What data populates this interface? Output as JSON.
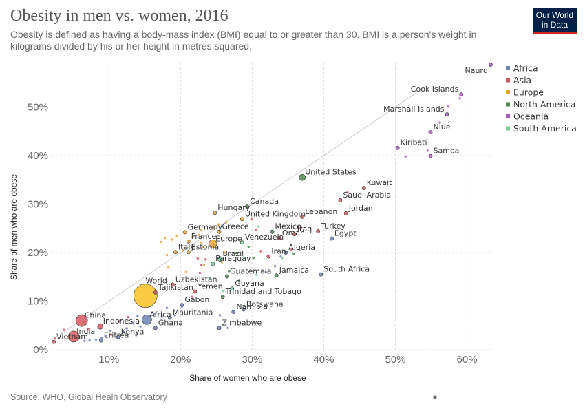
{
  "header": {
    "title": "Obesity in men vs. women, 2016",
    "subtitle": "Obesity is defined as having a body-mass index (BMI) equal to or greater than 30. BMI is a person's weight in kilograms divided by his or her height in metres squared.",
    "logo_line1": "Our World",
    "logo_line2": "in Data"
  },
  "footer": {
    "source": "Source: WHO, Global Healh Observatory"
  },
  "colors": {
    "Africa": "#6d83b5",
    "Asia": "#d25a5f",
    "Europe": "#e8a33a",
    "North America": "#4f8a50",
    "Oceania": "#ad5ac1",
    "South America": "#7cd199",
    "World": "#fbc72f",
    "diagonal": "#cccccc",
    "grid": "#dddddd"
  },
  "chart_data": {
    "type": "scatter",
    "title": "Obesity in men vs. women, 2016",
    "xlabel": "Share of women who are obese",
    "ylabel": "Share of men who are obese",
    "xlim": [
      2,
      63.5
    ],
    "ylim": [
      0,
      59
    ],
    "x_ticks": [
      10,
      20,
      30,
      40,
      50,
      60
    ],
    "y_ticks": [
      0,
      10,
      20,
      30,
      40,
      50
    ],
    "tick_suffix": "%",
    "grid": true,
    "reference_line": "y = x",
    "legend": [
      "Africa",
      "Asia",
      "Europe",
      "North America",
      "Oceania",
      "South America"
    ],
    "legend_position": "right",
    "points": [
      {
        "name": "Nauru",
        "region": "Oceania",
        "x": 63.3,
        "y": 58.7,
        "label": true
      },
      {
        "name": "Cook Islands",
        "region": "Oceania",
        "x": 59.2,
        "y": 52.6,
        "label": true
      },
      {
        "name": "Marshall Islands",
        "region": "Oceania",
        "x": 57.2,
        "y": 48.5,
        "label": true
      },
      {
        "name": "Niue",
        "region": "Oceania",
        "x": 54.9,
        "y": 44.8,
        "label": true
      },
      {
        "name": "Kiribati",
        "region": "Oceania",
        "x": 50.3,
        "y": 41.6,
        "label": true
      },
      {
        "name": "Samoa",
        "region": "Oceania",
        "x": 54.9,
        "y": 39.9,
        "label": true
      },
      {
        "name": "United States",
        "region": "North America",
        "x": 37.0,
        "y": 35.5,
        "label": true
      },
      {
        "name": "Kuwait",
        "region": "Asia",
        "x": 45.6,
        "y": 33.3,
        "label": true
      },
      {
        "name": "Saudi Arabia",
        "region": "Asia",
        "x": 42.3,
        "y": 30.8,
        "label": true
      },
      {
        "name": "Jordan",
        "region": "Asia",
        "x": 43.1,
        "y": 28.1,
        "label": true
      },
      {
        "name": "Canada",
        "region": "North America",
        "x": 29.3,
        "y": 29.5,
        "label": true
      },
      {
        "name": "Hungary",
        "region": "Europe",
        "x": 24.8,
        "y": 28.2,
        "label": true
      },
      {
        "name": "United Kingdom",
        "region": "Europe",
        "x": 28.6,
        "y": 26.9,
        "label": true
      },
      {
        "name": "Lebanon",
        "region": "Asia",
        "x": 37.0,
        "y": 27.4,
        "label": true
      },
      {
        "name": "Turkey",
        "region": "Asia",
        "x": 39.2,
        "y": 24.4,
        "label": true
      },
      {
        "name": "Mexico",
        "region": "North America",
        "x": 32.8,
        "y": 24.3,
        "label": true
      },
      {
        "name": "Iraq",
        "region": "Asia",
        "x": 35.9,
        "y": 23.8,
        "label": true
      },
      {
        "name": "Egypt",
        "region": "Africa",
        "x": 41.1,
        "y": 22.9,
        "label": true
      },
      {
        "name": "Oman",
        "region": "Asia",
        "x": 33.8,
        "y": 23.0,
        "label": true
      },
      {
        "name": "Germany",
        "region": "Europe",
        "x": 20.6,
        "y": 24.2,
        "label": true
      },
      {
        "name": "Greece",
        "region": "Europe",
        "x": 25.4,
        "y": 24.3,
        "label": true
      },
      {
        "name": "France",
        "region": "Europe",
        "x": 21.1,
        "y": 22.3,
        "label": true
      },
      {
        "name": "Europe",
        "region": "Europe",
        "x": 24.5,
        "y": 21.8,
        "label": true
      },
      {
        "name": "Venezuela",
        "region": "South America",
        "x": 28.6,
        "y": 22.1,
        "label": true
      },
      {
        "name": "Italy",
        "region": "Europe",
        "x": 19.3,
        "y": 20.1,
        "label": true
      },
      {
        "name": "Estonia",
        "region": "Europe",
        "x": 21.1,
        "y": 20.1,
        "label": true
      },
      {
        "name": "Algeria",
        "region": "Africa",
        "x": 34.7,
        "y": 20.0,
        "label": true
      },
      {
        "name": "Iran",
        "region": "Asia",
        "x": 32.3,
        "y": 19.2,
        "label": true
      },
      {
        "name": "Brazil",
        "region": "South America",
        "x": 25.5,
        "y": 18.7,
        "label": true
      },
      {
        "name": "Paraguay",
        "region": "South America",
        "x": 24.5,
        "y": 17.7,
        "label": true
      },
      {
        "name": "Jamaica",
        "region": "North America",
        "x": 33.4,
        "y": 15.3,
        "label": true
      },
      {
        "name": "South Africa",
        "region": "Africa",
        "x": 39.6,
        "y": 15.5,
        "label": true
      },
      {
        "name": "Guatemala",
        "region": "North America",
        "x": 26.5,
        "y": 15.1,
        "label": true
      },
      {
        "name": "World",
        "region": "World",
        "x": 15.1,
        "y": 11.1,
        "label": true
      },
      {
        "name": "Uzbekistan",
        "region": "Asia",
        "x": 18.9,
        "y": 13.4,
        "label": true
      },
      {
        "name": "Guyana",
        "region": "South America",
        "x": 27.2,
        "y": 12.6,
        "label": true
      },
      {
        "name": "Tajikistan",
        "region": "Asia",
        "x": 16.5,
        "y": 11.8,
        "label": true
      },
      {
        "name": "Yemen",
        "region": "Asia",
        "x": 22.0,
        "y": 12.0,
        "label": true
      },
      {
        "name": "Trinidad and Tobago",
        "region": "North America",
        "x": 25.9,
        "y": 10.9,
        "label": true
      },
      {
        "name": "Gabon",
        "region": "Africa",
        "x": 20.2,
        "y": 9.2,
        "label": true
      },
      {
        "name": "Botswana",
        "region": "Africa",
        "x": 28.8,
        "y": 8.3,
        "label": true
      },
      {
        "name": "Namibia",
        "region": "Africa",
        "x": 27.4,
        "y": 7.8,
        "label": true
      },
      {
        "name": "Mauritania",
        "region": "Africa",
        "x": 18.5,
        "y": 6.6,
        "label": true
      },
      {
        "name": "China",
        "region": "Asia",
        "x": 6.2,
        "y": 6.0,
        "label": true
      },
      {
        "name": "Africa",
        "region": "Africa",
        "x": 15.3,
        "y": 6.2,
        "label": true
      },
      {
        "name": "Indonesia",
        "region": "Asia",
        "x": 8.8,
        "y": 4.8,
        "label": true
      },
      {
        "name": "Ghana",
        "region": "Africa",
        "x": 16.5,
        "y": 4.5,
        "label": true
      },
      {
        "name": "Zimbabwe",
        "region": "Africa",
        "x": 25.4,
        "y": 4.5,
        "label": true
      },
      {
        "name": "India",
        "region": "Asia",
        "x": 5.1,
        "y": 2.7,
        "label": true
      },
      {
        "name": "Kenya",
        "region": "Africa",
        "x": 11.3,
        "y": 2.6,
        "label": true
      },
      {
        "name": "Eritrea",
        "region": "Africa",
        "x": 8.9,
        "y": 1.9,
        "label": true
      },
      {
        "name": "Vietnam",
        "region": "Asia",
        "x": 2.3,
        "y": 1.6,
        "label": true
      },
      {
        "name": "",
        "region": "Oceania",
        "x": 59.0,
        "y": 51.8
      },
      {
        "name": "",
        "region": "Oceania",
        "x": 57.4,
        "y": 50.1
      },
      {
        "name": "",
        "region": "Oceania",
        "x": 56.2,
        "y": 46.8
      },
      {
        "name": "",
        "region": "Oceania",
        "x": 54.5,
        "y": 41.0
      },
      {
        "name": "",
        "region": "Oceania",
        "x": 51.4,
        "y": 39.8
      },
      {
        "name": "",
        "region": "Asia",
        "x": 43.3,
        "y": 32.4
      },
      {
        "name": "",
        "region": "Asia",
        "x": 36.8,
        "y": 25.2
      },
      {
        "name": "",
        "region": "Asia",
        "x": 35.5,
        "y": 20.6
      },
      {
        "name": "",
        "region": "North America",
        "x": 35.8,
        "y": 19.8
      },
      {
        "name": "",
        "region": "South America",
        "x": 34.2,
        "y": 18.9
      },
      {
        "name": "",
        "region": "North America",
        "x": 30.2,
        "y": 18.9
      },
      {
        "name": "",
        "region": "Asia",
        "x": 31.2,
        "y": 20.3
      },
      {
        "name": "",
        "region": "Asia",
        "x": 29.9,
        "y": 26.9
      },
      {
        "name": "",
        "region": "Asia",
        "x": 30.5,
        "y": 24.7
      },
      {
        "name": "",
        "region": "South America",
        "x": 30.9,
        "y": 25.4
      },
      {
        "name": "",
        "region": "Europe",
        "x": 25.3,
        "y": 25.8
      },
      {
        "name": "",
        "region": "Europe",
        "x": 26.4,
        "y": 26.3
      },
      {
        "name": "",
        "region": "Europe",
        "x": 24.5,
        "y": 25.1
      },
      {
        "name": "",
        "region": "Europe",
        "x": 22.9,
        "y": 24.6
      },
      {
        "name": "",
        "region": "Europe",
        "x": 22.6,
        "y": 23.6
      },
      {
        "name": "",
        "region": "Europe",
        "x": 21.7,
        "y": 23.2
      },
      {
        "name": "",
        "region": "Europe",
        "x": 19.5,
        "y": 23.4
      },
      {
        "name": "",
        "region": "Europe",
        "x": 18.8,
        "y": 22.7
      },
      {
        "name": "",
        "region": "Europe",
        "x": 17.3,
        "y": 22.2
      },
      {
        "name": "",
        "region": "Europe",
        "x": 17.8,
        "y": 23.0
      },
      {
        "name": "",
        "region": "Europe",
        "x": 23.2,
        "y": 21.1
      },
      {
        "name": "",
        "region": "Europe",
        "x": 22.9,
        "y": 22.1
      },
      {
        "name": "",
        "region": "Europe",
        "x": 20.4,
        "y": 20.4
      },
      {
        "name": "",
        "region": "Europe",
        "x": 26.1,
        "y": 20.1
      },
      {
        "name": "",
        "region": "Europe",
        "x": 18.1,
        "y": 19.5
      },
      {
        "name": "",
        "region": "Europe",
        "x": 18.3,
        "y": 17.0
      },
      {
        "name": "",
        "region": "Europe",
        "x": 20.8,
        "y": 16.1
      },
      {
        "name": "",
        "region": "Europe",
        "x": 23.3,
        "y": 17.4
      },
      {
        "name": "",
        "region": "Europe",
        "x": 25.8,
        "y": 18.0
      },
      {
        "name": "",
        "region": "Asia",
        "x": 22.4,
        "y": 18.8
      },
      {
        "name": "",
        "region": "Asia",
        "x": 22.9,
        "y": 17.4
      },
      {
        "name": "",
        "region": "Asia",
        "x": 23.5,
        "y": 18.6
      },
      {
        "name": "",
        "region": "North America",
        "x": 27.7,
        "y": 19.9
      },
      {
        "name": "",
        "region": "North America",
        "x": 29.5,
        "y": 21.2
      },
      {
        "name": "",
        "region": "South America",
        "x": 28.8,
        "y": 19.0
      },
      {
        "name": "",
        "region": "North America",
        "x": 26.8,
        "y": 16.2
      },
      {
        "name": "",
        "region": "Asia",
        "x": 22.7,
        "y": 15.8
      },
      {
        "name": "",
        "region": "South America",
        "x": 24.0,
        "y": 14.8
      },
      {
        "name": "",
        "region": "North America",
        "x": 28.2,
        "y": 14.2
      },
      {
        "name": "",
        "region": "South America",
        "x": 26.0,
        "y": 12.1
      },
      {
        "name": "",
        "region": "South America",
        "x": 30.6,
        "y": 15.4
      },
      {
        "name": "",
        "region": "Africa",
        "x": 33.2,
        "y": 17.2
      },
      {
        "name": "",
        "region": "Africa",
        "x": 34.0,
        "y": 19.2
      },
      {
        "name": "",
        "region": "Africa",
        "x": 31.9,
        "y": 16.0
      },
      {
        "name": "",
        "region": "Asia",
        "x": 21.6,
        "y": 10.9
      },
      {
        "name": "",
        "region": "Africa",
        "x": 20.2,
        "y": 8.9
      },
      {
        "name": "",
        "region": "Africa",
        "x": 18.1,
        "y": 8.6
      },
      {
        "name": "",
        "region": "Africa",
        "x": 19.2,
        "y": 7.1
      },
      {
        "name": "",
        "region": "Africa",
        "x": 17.4,
        "y": 6.8
      },
      {
        "name": "",
        "region": "Africa",
        "x": 16.3,
        "y": 7.3
      },
      {
        "name": "",
        "region": "Africa",
        "x": 14.0,
        "y": 6.9
      },
      {
        "name": "",
        "region": "Africa",
        "x": 13.4,
        "y": 5.5
      },
      {
        "name": "",
        "region": "Africa",
        "x": 14.4,
        "y": 4.8
      },
      {
        "name": "",
        "region": "Africa",
        "x": 12.5,
        "y": 4.4
      },
      {
        "name": "",
        "region": "Africa",
        "x": 12.1,
        "y": 3.6
      },
      {
        "name": "",
        "region": "Africa",
        "x": 10.2,
        "y": 3.9
      },
      {
        "name": "",
        "region": "Africa",
        "x": 9.6,
        "y": 2.9
      },
      {
        "name": "",
        "region": "Africa",
        "x": 9.0,
        "y": 2.4
      },
      {
        "name": "",
        "region": "Africa",
        "x": 8.2,
        "y": 2.1
      },
      {
        "name": "",
        "region": "Africa",
        "x": 7.3,
        "y": 1.9
      },
      {
        "name": "",
        "region": "Africa",
        "x": 6.6,
        "y": 1.8
      },
      {
        "name": "",
        "region": "Africa",
        "x": 11.6,
        "y": 6.0
      },
      {
        "name": "",
        "region": "Africa",
        "x": 13.8,
        "y": 3.0
      },
      {
        "name": "",
        "region": "Africa",
        "x": 25.5,
        "y": 7.1
      },
      {
        "name": "",
        "region": "Africa",
        "x": 26.6,
        "y": 4.5
      },
      {
        "name": "",
        "region": "Asia",
        "x": 12.7,
        "y": 6.7
      },
      {
        "name": "",
        "region": "Asia",
        "x": 11.4,
        "y": 5.8
      },
      {
        "name": "",
        "region": "Asia",
        "x": 7.2,
        "y": 4.2
      },
      {
        "name": "",
        "region": "Asia",
        "x": 6.5,
        "y": 5.7
      },
      {
        "name": "",
        "region": "Asia",
        "x": 3.7,
        "y": 4.1
      },
      {
        "name": "",
        "region": "Asia",
        "x": 4.4,
        "y": 2.6
      },
      {
        "name": "",
        "region": "Asia",
        "x": 2.5,
        "y": 2.3
      },
      {
        "name": "",
        "region": "Asia",
        "x": 10.3,
        "y": 3.1
      }
    ]
  }
}
